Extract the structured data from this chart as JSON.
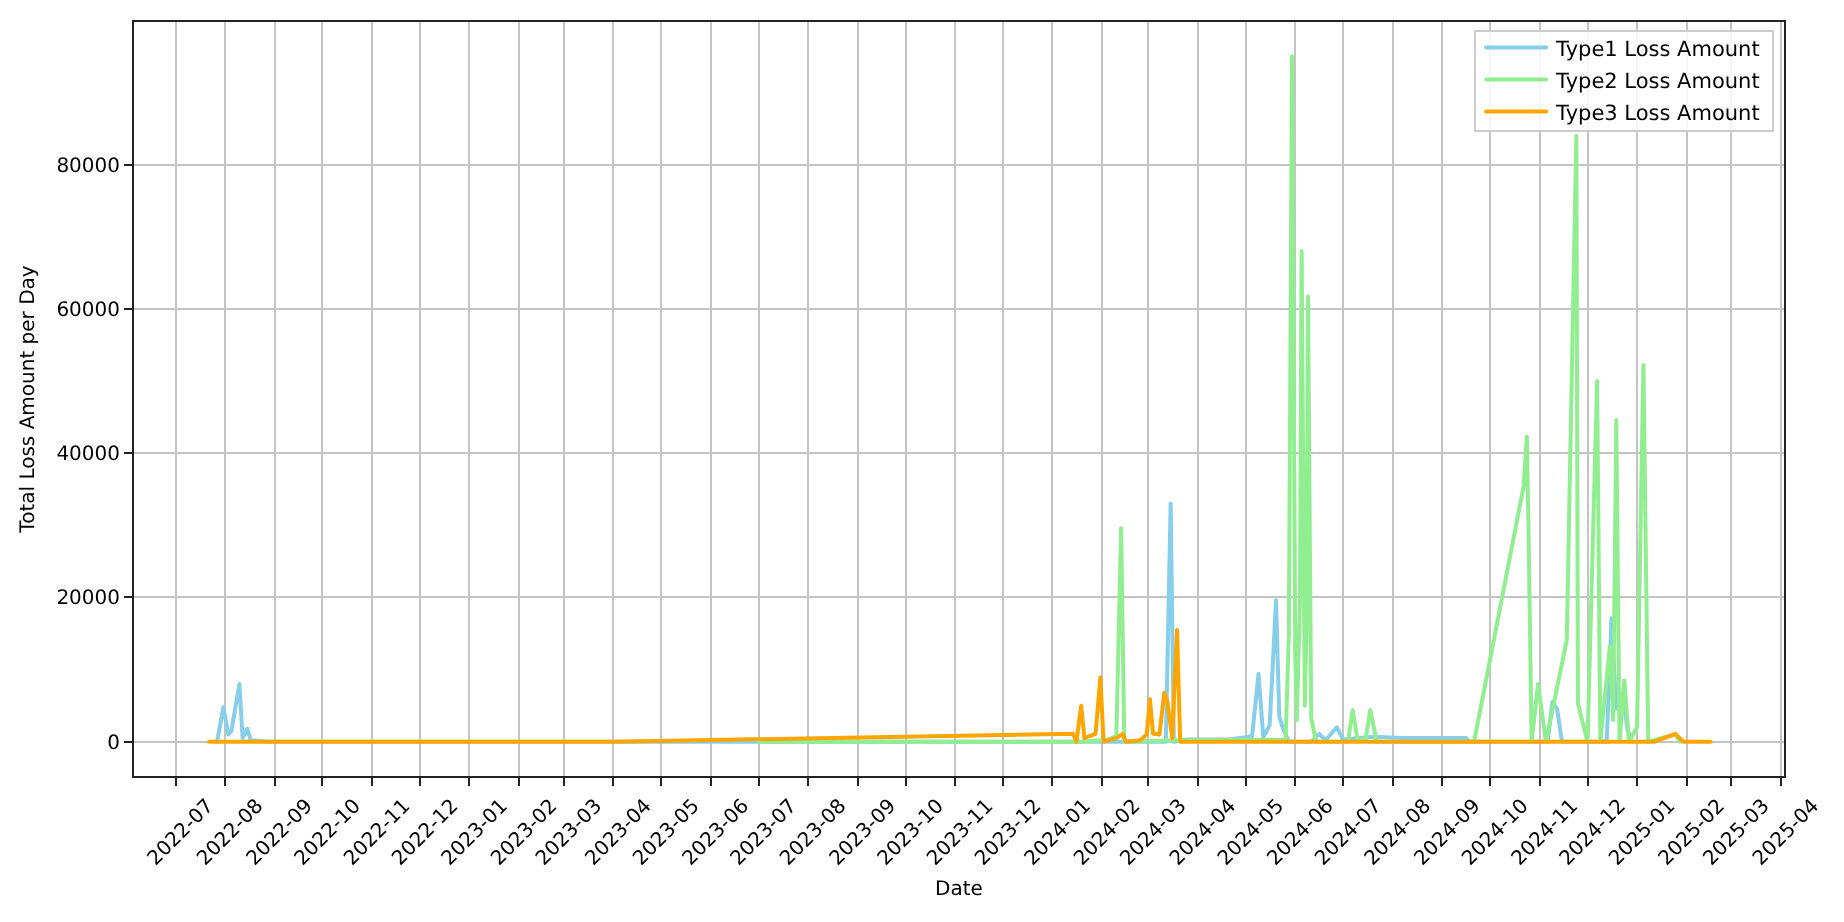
{
  "chart_data": {
    "type": "line",
    "xlabel": "Date",
    "ylabel": "Total Loss Amount per Day",
    "xlim": [
      "2022-06-05",
      "2025-04-03"
    ],
    "xticks": [
      "2022-07",
      "2022-08",
      "2022-09",
      "2022-10",
      "2022-11",
      "2022-12",
      "2023-01",
      "2023-02",
      "2023-03",
      "2023-04",
      "2023-05",
      "2023-06",
      "2023-07",
      "2023-08",
      "2023-09",
      "2023-10",
      "2023-11",
      "2023-12",
      "2024-01",
      "2024-02",
      "2024-03",
      "2024-04",
      "2024-05",
      "2024-06",
      "2024-07",
      "2024-08",
      "2024-09",
      "2024-10",
      "2024-11",
      "2024-12",
      "2025-01",
      "2025-02",
      "2025-03",
      "2025-04"
    ],
    "ylim": [
      -4750,
      99750
    ],
    "yticks": [
      0,
      20000,
      40000,
      60000,
      80000
    ],
    "grid": true,
    "legend": "top right",
    "series": [
      {
        "name": "Type1 Loss Amount",
        "color": "#87ceeb",
        "x": [
          "2022-07-27",
          "2022-07-31",
          "2022-08-03",
          "2022-08-05",
          "2022-08-10",
          "2022-08-12",
          "2022-08-15",
          "2022-08-17",
          "2022-08-28",
          "2024-03-12",
          "2024-03-15",
          "2024-03-17",
          "2024-03-25",
          "2024-04-10",
          "2024-04-20",
          "2024-04-30",
          "2024-05-05",
          "2024-05-09",
          "2024-05-12",
          "2024-05-16",
          "2024-05-20",
          "2024-05-22",
          "2024-05-24",
          "2024-05-28",
          "2024-06-11",
          "2024-06-16",
          "2024-06-20",
          "2024-06-27",
          "2024-07-01",
          "2024-07-10",
          "2024-07-20",
          "2024-08-07",
          "2024-08-22",
          "2024-09-05",
          "2024-09-16",
          "2024-09-18",
          "2024-11-06",
          "2024-11-09",
          "2024-11-12",
          "2024-11-15",
          "2024-12-13",
          "2024-12-16",
          "2024-12-19",
          "2024-12-23",
          "2024-12-26",
          "2024-12-29"
        ],
        "values": [
          0,
          4800,
          1000,
          1500,
          8000,
          500,
          1800,
          200,
          0,
          0,
          33000,
          0,
          300,
          300,
          300,
          600,
          800,
          9400,
          600,
          2300,
          19600,
          3500,
          2000,
          0,
          0,
          1100,
          200,
          2000,
          300,
          500,
          700,
          500,
          500,
          500,
          500,
          0,
          0,
          5500,
          4500,
          0,
          0,
          17100,
          4600,
          6700,
          1700,
          0
        ]
      },
      {
        "name": "Type2 Loss Amount",
        "color": "#90ee90",
        "x": [
          "2023-07-01",
          "2024-01-20",
          "2024-02-05",
          "2024-02-10",
          "2024-02-13",
          "2024-02-15",
          "2024-03-20",
          "2024-04-20",
          "2024-05-26",
          "2024-05-28",
          "2024-05-30",
          "2024-06-01",
          "2024-06-02",
          "2024-06-04",
          "2024-06-05",
          "2024-06-07",
          "2024-06-08",
          "2024-06-09",
          "2024-06-11",
          "2024-06-14",
          "2024-07-04",
          "2024-07-07",
          "2024-07-10",
          "2024-07-15",
          "2024-07-18",
          "2024-07-22",
          "2024-09-21",
          "2024-10-22",
          "2024-10-24",
          "2024-10-25",
          "2024-10-27",
          "2024-10-31",
          "2024-11-05",
          "2024-11-18",
          "2024-11-24",
          "2024-11-25",
          "2024-12-01",
          "2024-12-07",
          "2024-12-09",
          "2024-12-15",
          "2024-12-17",
          "2024-12-19",
          "2024-12-21",
          "2024-12-24",
          "2024-12-27",
          "2025-01-01",
          "2025-01-05",
          "2025-01-08",
          "2025-01-25",
          "2025-01-28"
        ],
        "values": [
          0,
          0,
          300,
          800,
          29600,
          0,
          200,
          200,
          300,
          15000,
          95000,
          12000,
          3000,
          20000,
          68000,
          5000,
          15000,
          61700,
          3300,
          0,
          0,
          4400,
          300,
          300,
          4400,
          0,
          0,
          35400,
          42300,
          30000,
          0,
          8000,
          0,
          14100,
          84000,
          5300,
          0,
          50000,
          0,
          13200,
          3000,
          44600,
          0,
          8500,
          0,
          2000,
          52200,
          0,
          1000,
          0
        ]
      },
      {
        "name": "Type3 Loss Amount",
        "color": "#ffa500",
        "x": [
          "2022-07-22",
          "2023-04-01",
          "2024-01-14",
          "2024-01-16",
          "2024-01-19",
          "2024-01-21",
          "2024-01-28",
          "2024-01-31",
          "2024-02-02",
          "2024-02-10",
          "2024-02-14",
          "2024-02-16",
          "2024-02-25",
          "2024-02-29",
          "2024-03-02",
          "2024-03-04",
          "2024-03-08",
          "2024-03-11",
          "2024-03-13",
          "2024-03-16",
          "2024-03-19",
          "2024-03-21",
          "2025-01-12",
          "2025-01-25",
          "2025-01-30",
          "2025-02-16"
        ],
        "values": [
          0,
          0,
          1100,
          0,
          5000,
          500,
          1100,
          8900,
          0,
          500,
          1100,
          0,
          200,
          1000,
          5900,
          1100,
          1000,
          6800,
          5500,
          500,
          15500,
          0,
          0,
          1100,
          0,
          0
        ]
      }
    ]
  }
}
